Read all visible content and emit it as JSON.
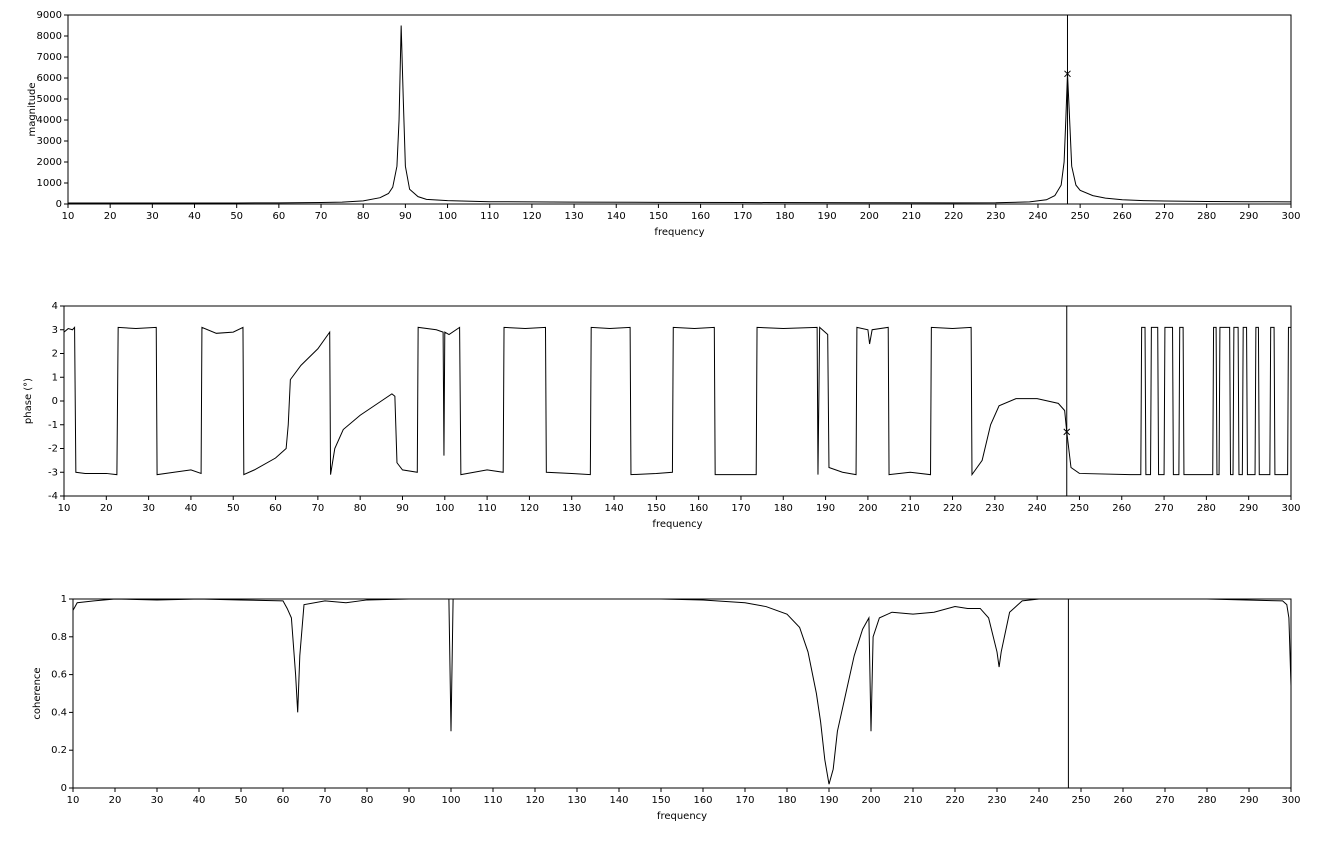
{
  "chart_data": [
    {
      "type": "line",
      "xlabel": "frequency",
      "ylabel": "magnitude",
      "color": "#000000",
      "xlim": [
        10,
        300
      ],
      "xticks": [
        10,
        20,
        30,
        40,
        50,
        60,
        70,
        80,
        90,
        100,
        110,
        120,
        130,
        140,
        150,
        160,
        170,
        180,
        190,
        200,
        210,
        220,
        230,
        240,
        250,
        260,
        270,
        280,
        290,
        300
      ],
      "ylim": [
        0,
        9000
      ],
      "yticks": [
        0,
        1000,
        2000,
        3000,
        4000,
        5000,
        6000,
        7000,
        8000,
        9000
      ],
      "x": [
        10,
        20,
        30,
        40,
        50,
        60,
        70,
        75,
        80,
        84,
        86,
        87,
        88,
        88.5,
        89,
        89.5,
        90,
        91,
        93,
        95,
        100,
        110,
        130,
        150,
        170,
        200,
        220,
        230,
        238,
        242,
        244,
        245.5,
        246.2,
        246.6,
        247,
        247.4,
        248,
        249,
        250,
        253,
        256,
        260,
        265,
        270,
        280,
        290,
        300
      ],
      "values": [
        50,
        50,
        50,
        50,
        50,
        55,
        70,
        90,
        150,
        300,
        500,
        800,
        1800,
        4000,
        8500,
        5000,
        1800,
        700,
        350,
        220,
        160,
        110,
        90,
        80,
        70,
        60,
        55,
        60,
        100,
        200,
        400,
        900,
        2000,
        4000,
        6200,
        4500,
        1800,
        900,
        650,
        400,
        280,
        200,
        160,
        140,
        120,
        110,
        100
      ],
      "cursor_x": 247,
      "cursor_y": 6200
    },
    {
      "type": "line",
      "xlabel": "frequency",
      "ylabel": "phase (°)",
      "color": "#000000",
      "xlim": [
        10,
        300
      ],
      "xticks": [
        10,
        20,
        30,
        40,
        50,
        60,
        70,
        80,
        90,
        100,
        110,
        120,
        130,
        140,
        150,
        160,
        170,
        180,
        190,
        200,
        210,
        220,
        230,
        240,
        250,
        260,
        270,
        280,
        290,
        300
      ],
      "ylim": [
        -4,
        4
      ],
      "yticks": [
        -4,
        -3,
        -2,
        -1,
        0,
        1,
        2,
        3,
        4
      ],
      "x": [
        10,
        11,
        12,
        12.5,
        12.8,
        15,
        20,
        22.5,
        22.8,
        27,
        31.8,
        32,
        36,
        40,
        42.4,
        42.6,
        46,
        50,
        52.3,
        52.5,
        55,
        60,
        62.5,
        63,
        63.5,
        66,
        70,
        72.8,
        73,
        74,
        76,
        80,
        85,
        87.5,
        88.2,
        88.7,
        90,
        93.5,
        93.7,
        98,
        99.6,
        99.8,
        100,
        101,
        103.5,
        103.8,
        110,
        113.8,
        114,
        119,
        123.8,
        124,
        130,
        134.4,
        134.6,
        139,
        143.8,
        144,
        150,
        153.8,
        154,
        159,
        163.7,
        163.9,
        170,
        173.6,
        173.8,
        180,
        188,
        188.2,
        188.6,
        190.5,
        190.8,
        194,
        197.2,
        197.4,
        200,
        200.4,
        201,
        204.8,
        205,
        210,
        214.8,
        215,
        220,
        224.4,
        224.6,
        227,
        229,
        231,
        235,
        240,
        245,
        246.5,
        247,
        248,
        250,
        262,
        264.5,
        264.7,
        265.5,
        265.7,
        266.8,
        267,
        268.5,
        268.7,
        270,
        270.2,
        272,
        272.2,
        273.5,
        273.7,
        274.5,
        274.7,
        281.5,
        281.7,
        282.3,
        282.5,
        283,
        283.2,
        285.5,
        285.7,
        286.3,
        286.5,
        287.5,
        287.7,
        288.5,
        288.7,
        289.5,
        289.7,
        291.5,
        291.7,
        292.3,
        292.5,
        295,
        295.2,
        296,
        296.2,
        299.2,
        299.4,
        300
      ],
      "values": [
        2.9,
        3.05,
        3.0,
        3.1,
        -3.0,
        -3.05,
        -3.05,
        -3.1,
        3.1,
        3.05,
        3.1,
        -3.1,
        -3.0,
        -2.9,
        -3.05,
        3.1,
        2.85,
        2.9,
        3.1,
        -3.1,
        -2.9,
        -2.4,
        -2.0,
        -1.0,
        0.9,
        1.5,
        2.2,
        2.9,
        -3.1,
        -2.0,
        -1.2,
        -0.6,
        0.0,
        0.3,
        0.2,
        -2.6,
        -2.9,
        -3.0,
        3.1,
        3.0,
        2.9,
        -2.3,
        2.9,
        2.8,
        3.1,
        -3.1,
        -2.9,
        -3.0,
        3.1,
        3.05,
        3.1,
        -3.0,
        -3.05,
        -3.1,
        3.1,
        3.05,
        3.1,
        -3.1,
        -3.05,
        -3.0,
        3.1,
        3.05,
        3.1,
        -3.1,
        -3.1,
        -3.1,
        3.1,
        3.05,
        3.1,
        -3.1,
        3.1,
        2.8,
        -2.8,
        -3.0,
        -3.1,
        3.1,
        3.0,
        2.4,
        3.0,
        3.1,
        -3.1,
        -3.0,
        -3.1,
        3.1,
        3.05,
        3.1,
        -3.1,
        -2.5,
        -1.0,
        -0.2,
        0.1,
        0.1,
        -0.1,
        -0.4,
        -1.3,
        -2.8,
        -3.05,
        -3.1,
        -3.1,
        3.1,
        3.1,
        -3.1,
        -3.1,
        3.1,
        3.1,
        -3.1,
        -3.1,
        3.1,
        3.1,
        -3.1,
        -3.1,
        3.1,
        3.1,
        -3.1,
        -3.1,
        3.1,
        3.1,
        -3.1,
        -3.1,
        3.1,
        3.1,
        -3.1,
        -3.1,
        3.1,
        3.1,
        -3.1,
        -3.1,
        3.1,
        3.1,
        -3.1,
        -3.1,
        3.1,
        3.1,
        -3.1,
        -3.1,
        3.1,
        3.1,
        -3.1,
        -3.1,
        3.1,
        3.1
      ],
      "cursor_x": 247,
      "cursor_y": -1.3
    },
    {
      "type": "line",
      "xlabel": "frequency",
      "ylabel": "coherence",
      "color": "#000000",
      "xlim": [
        10,
        300
      ],
      "xticks": [
        10,
        20,
        30,
        40,
        50,
        60,
        70,
        80,
        90,
        100,
        110,
        120,
        130,
        140,
        150,
        160,
        170,
        180,
        190,
        200,
        210,
        220,
        230,
        240,
        250,
        260,
        270,
        280,
        290,
        300
      ],
      "ylim": [
        0,
        1
      ],
      "yticks": [
        0,
        0.2,
        0.4,
        0.6,
        0.8,
        1
      ],
      "x": [
        10,
        11,
        15,
        20,
        30,
        40,
        50,
        60,
        61,
        62,
        63,
        63.5,
        64,
        65,
        70,
        75,
        80,
        90,
        99.5,
        100,
        100.5,
        120,
        150,
        160,
        170,
        175,
        180,
        183,
        185,
        187,
        188,
        189,
        190,
        191,
        192,
        194,
        196,
        198,
        199.5,
        200,
        200.5,
        202,
        205,
        210,
        215,
        220,
        223,
        226,
        228,
        230,
        230.5,
        231,
        233,
        236,
        240,
        260,
        280,
        298,
        299,
        299.5,
        300
      ],
      "values": [
        0.94,
        0.98,
        0.99,
        1.0,
        0.995,
        1.0,
        0.995,
        0.99,
        0.95,
        0.9,
        0.6,
        0.4,
        0.7,
        0.97,
        0.99,
        0.98,
        0.995,
        1.0,
        1.0,
        0.3,
        1.0,
        1.0,
        1.0,
        0.995,
        0.98,
        0.96,
        0.92,
        0.85,
        0.72,
        0.5,
        0.35,
        0.15,
        0.02,
        0.1,
        0.3,
        0.5,
        0.7,
        0.84,
        0.9,
        0.3,
        0.8,
        0.9,
        0.93,
        0.92,
        0.93,
        0.96,
        0.95,
        0.95,
        0.9,
        0.72,
        0.64,
        0.72,
        0.93,
        0.99,
        1.0,
        1.0,
        1.0,
        0.99,
        0.97,
        0.9,
        0.54
      ],
      "cursor_x": 247
    }
  ]
}
